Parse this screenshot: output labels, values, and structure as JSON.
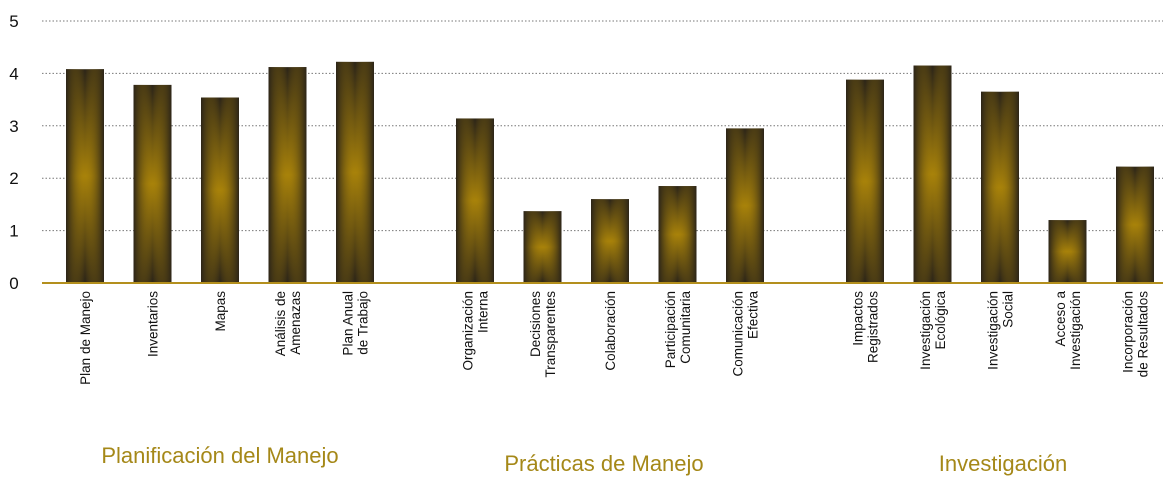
{
  "chart_data": {
    "type": "bar",
    "ylim": [
      0,
      5
    ],
    "yticks": [
      "0",
      "1",
      "2",
      "3",
      "4",
      "5"
    ],
    "grid": true,
    "colors": {
      "bar_dark": "#2b2418",
      "bar_glow": "#a8820a",
      "axis": "#b38f1d",
      "group_label": "#a58818",
      "grid": "#777777"
    },
    "groups": [
      {
        "label": "Planificación del Manejo",
        "categories": [
          [
            "Plan de Manejo"
          ],
          [
            "Inventarios"
          ],
          [
            "Mapas"
          ],
          [
            "Análisis de",
            "Amenazas"
          ],
          [
            "Plan Anual",
            "de Trabajo"
          ]
        ],
        "values": [
          4.08,
          3.78,
          3.54,
          4.12,
          4.22
        ]
      },
      {
        "label": "Prácticas de Manejo",
        "categories": [
          [
            "Organización",
            "Interna"
          ],
          [
            "Decisiones",
            "Transparentes"
          ],
          [
            "Colaboración"
          ],
          [
            "Participación",
            "Comunitaria"
          ],
          [
            "Comunicación",
            "Efectiva"
          ]
        ],
        "values": [
          3.14,
          1.37,
          1.6,
          1.85,
          2.95
        ]
      },
      {
        "label": "Investigación",
        "categories": [
          [
            "Impactos",
            "Registrados"
          ],
          [
            "Investigación",
            "Ecológica"
          ],
          [
            "Investigación",
            "Social"
          ],
          [
            "Acceso a",
            "Investigación"
          ],
          [
            "Incorporación",
            "de Resultados"
          ]
        ],
        "values": [
          3.88,
          4.15,
          3.65,
          1.2,
          2.22
        ]
      }
    ]
  }
}
